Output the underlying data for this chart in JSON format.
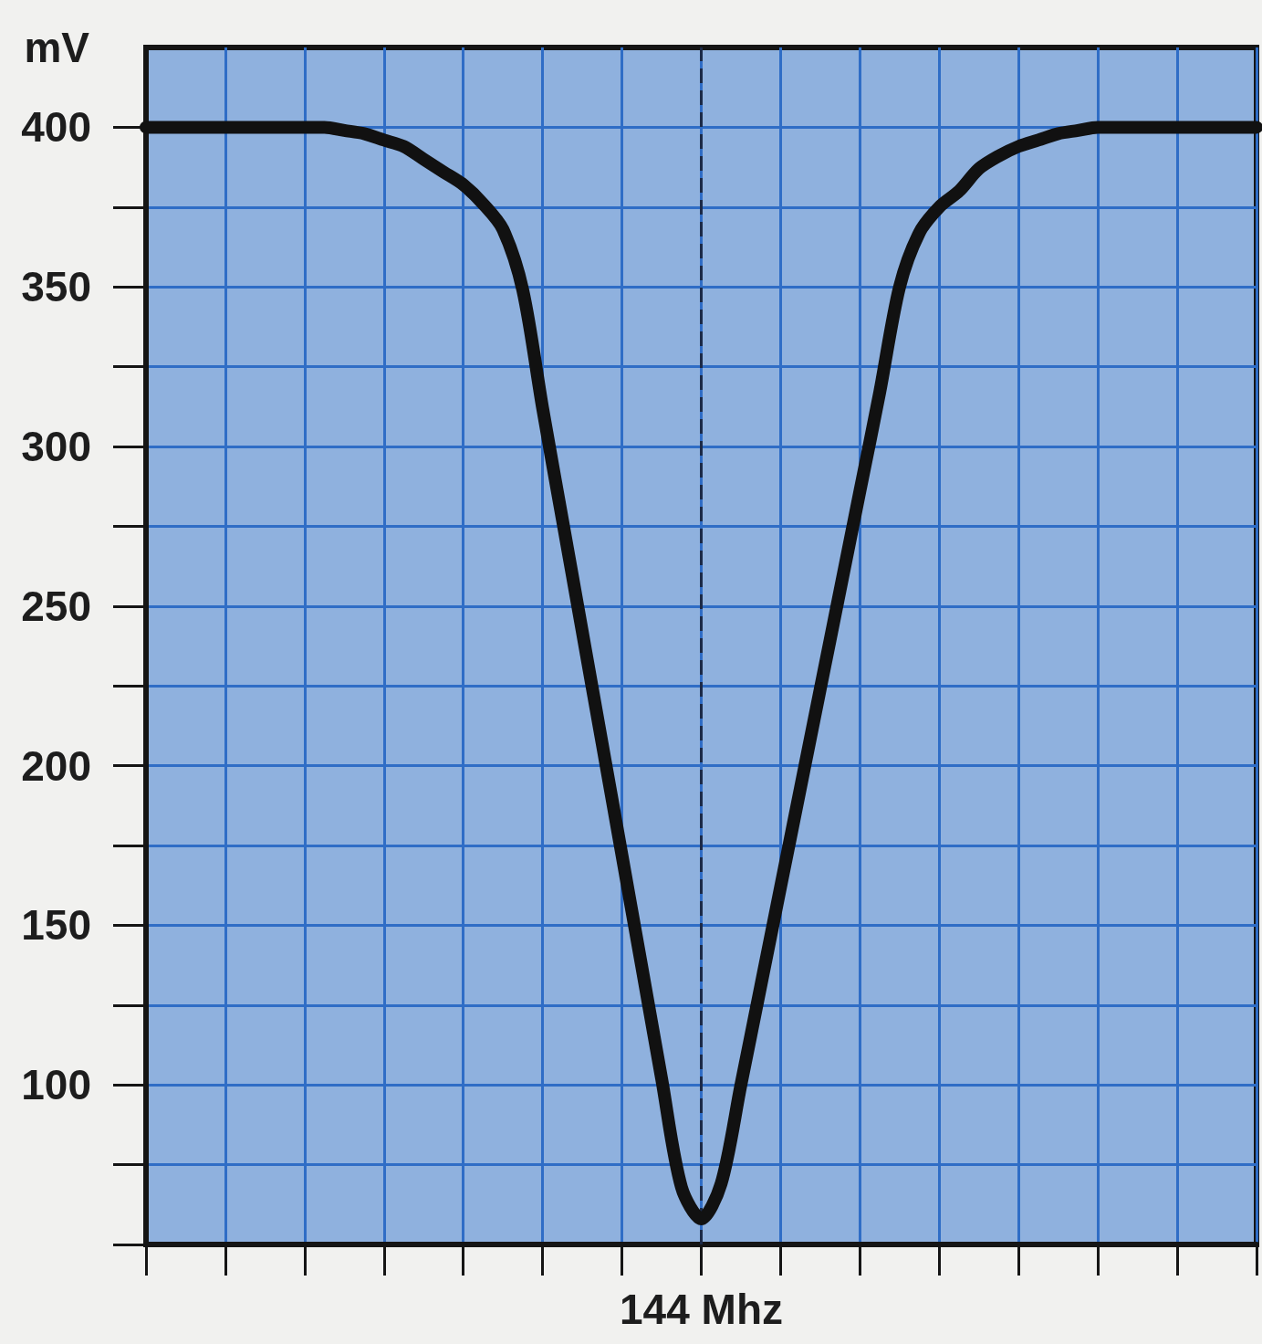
{
  "chart_data": {
    "type": "line",
    "ylabel": "mV",
    "categories": [
      null,
      null,
      null,
      null,
      null,
      null,
      null,
      null,
      null,
      null,
      null,
      null,
      null,
      null,
      null,
      null,
      null,
      null,
      null,
      null,
      null,
      null,
      null,
      null,
      null,
      null,
      null,
      null,
      "144 Mhz",
      null,
      null,
      null,
      null,
      null,
      null,
      null,
      null,
      null,
      null,
      null,
      null,
      null,
      null,
      null,
      null,
      null,
      null,
      null,
      null,
      null,
      null,
      null,
      null,
      null,
      null,
      null,
      null
    ],
    "values": [
      400,
      400,
      400,
      400,
      400,
      400,
      400,
      400,
      400,
      400,
      399,
      398,
      396,
      394,
      390,
      386,
      382,
      376,
      368,
      349,
      312,
      277,
      242,
      207,
      172,
      137,
      102,
      68,
      58,
      69,
      100,
      131,
      162,
      193,
      224,
      255,
      286,
      317,
      350,
      367,
      375,
      380,
      387,
      391,
      394,
      396,
      398,
      399,
      400,
      400,
      400,
      400,
      400,
      400,
      400,
      400,
      400
    ],
    "color": "#111111",
    "ylim": [
      50,
      425
    ],
    "yticks": [
      {
        "value": 50,
        "label": null
      },
      {
        "value": 75,
        "label": null
      },
      100,
      {
        "value": 125,
        "label": null
      },
      150,
      {
        "value": 175,
        "label": null
      },
      200,
      {
        "value": 225,
        "label": null
      },
      250,
      {
        "value": 275,
        "label": null
      },
      300,
      {
        "value": 325,
        "label": null
      },
      350,
      {
        "value": 375,
        "label": null
      },
      400
    ],
    "grid": true,
    "marker": "none",
    "ref_lines": [
      {
        "axis": "x",
        "value": "144 Mhz",
        "color": "#1c2a48",
        "line_style": "dashed"
      }
    ]
  }
}
